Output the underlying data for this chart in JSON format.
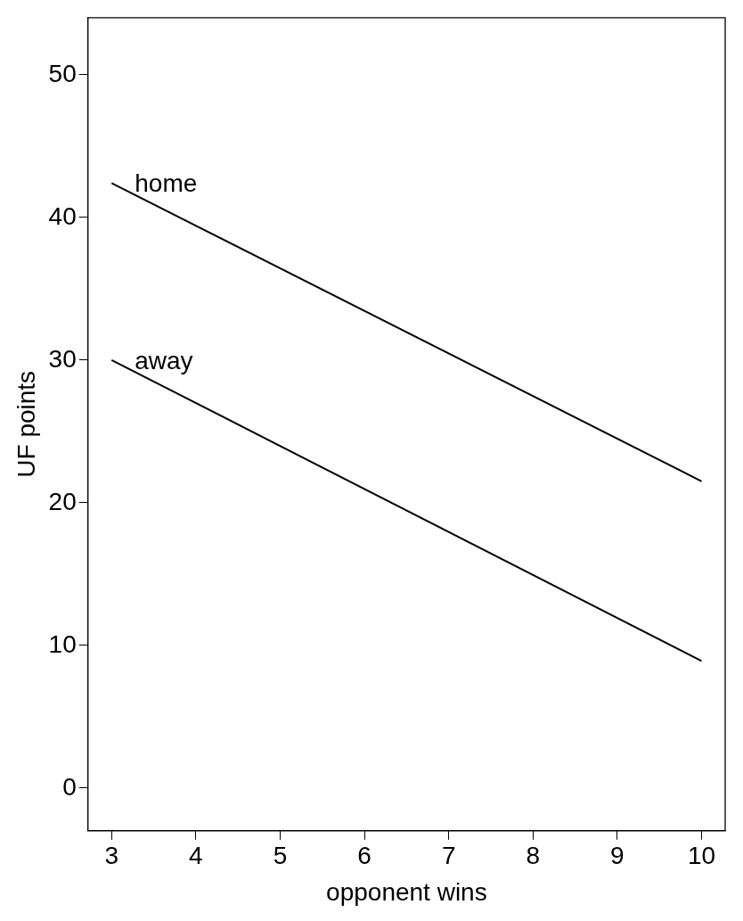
{
  "chart_data": {
    "type": "line",
    "xlabel": "opponent wins",
    "ylabel": "UF points",
    "xlim": [
      2.72,
      10.28
    ],
    "ylim": [
      -3,
      54
    ],
    "xticks": [
      3,
      4,
      5,
      6,
      7,
      8,
      9,
      10
    ],
    "yticks": [
      0,
      10,
      20,
      30,
      40,
      50
    ],
    "grid": false,
    "legend": false,
    "marker": "none",
    "line_style": "solid",
    "x": [
      3,
      10
    ],
    "series": [
      {
        "name": "home",
        "color": "#000000",
        "values": [
          42.4,
          21.5
        ]
      },
      {
        "name": "away",
        "color": "#000000",
        "values": [
          30.0,
          8.9
        ]
      }
    ]
  }
}
